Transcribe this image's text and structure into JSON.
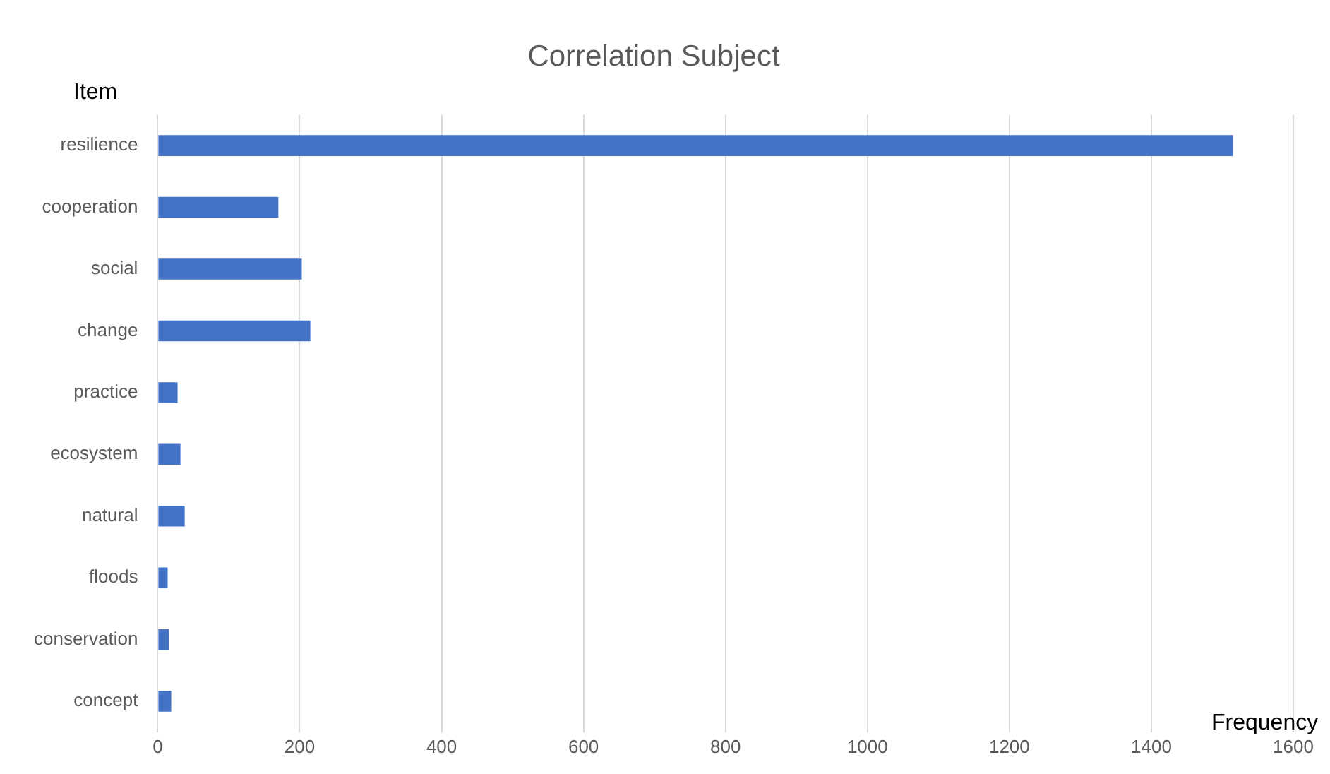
{
  "chart_data": {
    "type": "bar",
    "orientation": "horizontal",
    "title": "Correlation Subject",
    "xlabel": "Frequency",
    "ylabel": "Item",
    "categories": [
      "resilience",
      "cooperation",
      "social",
      "change",
      "practice",
      "ecosystem",
      "natural",
      "floods",
      "conservation",
      "concept"
    ],
    "values": [
      1515,
      170,
      203,
      215,
      28,
      32,
      38,
      14,
      16,
      19
    ],
    "color": "#4472c4",
    "xlim": [
      0,
      1600
    ],
    "xticks": [
      0,
      200,
      400,
      600,
      800,
      1000,
      1200,
      1400,
      1600
    ],
    "grid": "x",
    "legend": false
  }
}
